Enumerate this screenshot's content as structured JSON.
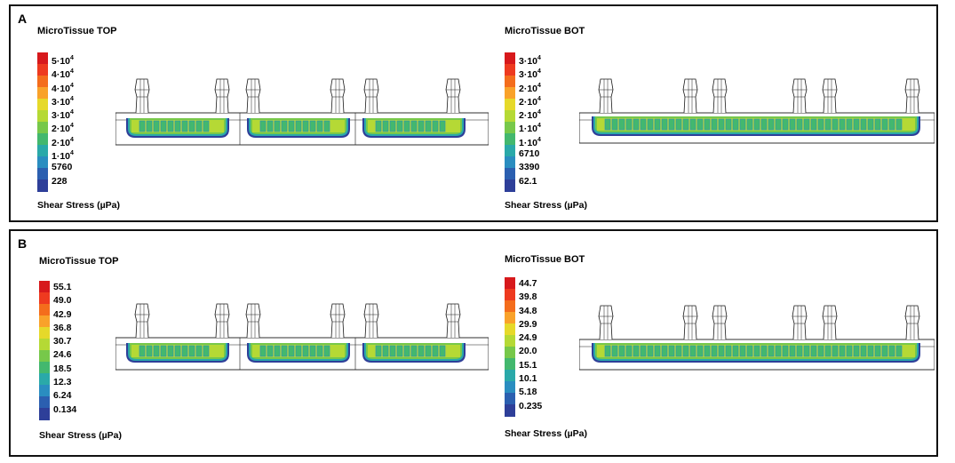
{
  "panels": [
    {
      "letter": "A",
      "top": {
        "title": "MicroTissue TOP",
        "footer": "Shear Stress (µPa)",
        "labels": [
          {
            "base": "5·10",
            "exp": "4"
          },
          {
            "base": "4·10",
            "exp": "4"
          },
          {
            "base": "4·10",
            "exp": "4"
          },
          {
            "base": "3·10",
            "exp": "4"
          },
          {
            "base": "3·10",
            "exp": "4"
          },
          {
            "base": "2·10",
            "exp": "4"
          },
          {
            "base": "2·10",
            "exp": "4"
          },
          {
            "base": "1·10",
            "exp": "4"
          },
          {
            "base": "5760",
            "exp": ""
          },
          {
            "base": "228",
            "exp": ""
          }
        ]
      },
      "bot": {
        "title": "MicroTissue BOT",
        "footer": "Shear Stress (µPa)",
        "labels": [
          {
            "base": "3·10",
            "exp": "4"
          },
          {
            "base": "3·10",
            "exp": "4"
          },
          {
            "base": "2·10",
            "exp": "4"
          },
          {
            "base": "2·10",
            "exp": "4"
          },
          {
            "base": "2·10",
            "exp": "4"
          },
          {
            "base": "1·10",
            "exp": "4"
          },
          {
            "base": "1·10",
            "exp": "4"
          },
          {
            "base": "6710",
            "exp": ""
          },
          {
            "base": "3390",
            "exp": ""
          },
          {
            "base": "62.1",
            "exp": ""
          }
        ]
      }
    },
    {
      "letter": "B",
      "top": {
        "title": "MicroTissue TOP",
        "footer": "Shear Stress (µPa)",
        "labels": [
          {
            "base": "55.1",
            "exp": ""
          },
          {
            "base": "49.0",
            "exp": ""
          },
          {
            "base": "42.9",
            "exp": ""
          },
          {
            "base": "36.8",
            "exp": ""
          },
          {
            "base": "30.7",
            "exp": ""
          },
          {
            "base": "24.6",
            "exp": ""
          },
          {
            "base": "18.5",
            "exp": ""
          },
          {
            "base": "12.3",
            "exp": ""
          },
          {
            "base": "6.24",
            "exp": ""
          },
          {
            "base": "0.134",
            "exp": ""
          }
        ]
      },
      "bot": {
        "title": "MicroTissue BOT",
        "footer": "Shear Stress (µPa)",
        "labels": [
          {
            "base": "44.7",
            "exp": ""
          },
          {
            "base": "39.8",
            "exp": ""
          },
          {
            "base": "34.8",
            "exp": ""
          },
          {
            "base": "29.9",
            "exp": ""
          },
          {
            "base": "24.9",
            "exp": ""
          },
          {
            "base": "20.0",
            "exp": ""
          },
          {
            "base": "15.1",
            "exp": ""
          },
          {
            "base": "10.1",
            "exp": ""
          },
          {
            "base": "5.18",
            "exp": ""
          },
          {
            "base": "0.235",
            "exp": ""
          }
        ]
      }
    }
  ],
  "colors": {
    "colormap": [
      "#d7191c",
      "#ee3a1f",
      "#f46d1c",
      "#f9a22a",
      "#e6d92a",
      "#b5d935",
      "#77c84a",
      "#43b86e",
      "#2aa9a9",
      "#2a8dc0",
      "#2b5fb0",
      "#2e3f99"
    ],
    "outline": "#1a1a1a"
  }
}
